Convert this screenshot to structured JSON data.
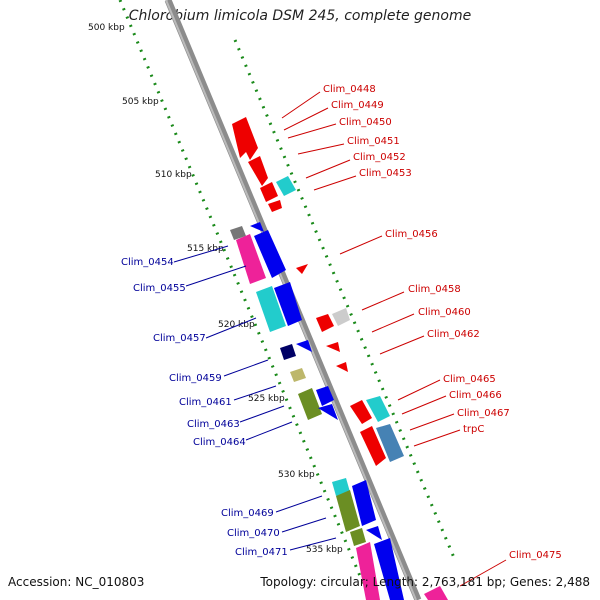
{
  "title": "Chlorobium limicola DSM 245, complete genome",
  "footer": {
    "accession": "Accession: NC_010803",
    "summary": "Topology: circular; Length: 2,763,181 bp; Genes: 2,488"
  },
  "scale_marks": [
    "500 kbp",
    "505 kbp",
    "510 kbp",
    "515 kbp",
    "520 kbp",
    "525 kbp",
    "530 kbp",
    "535 kbp"
  ],
  "genes_top": [
    "Clim_0448",
    "Clim_0449",
    "Clim_0450",
    "Clim_0451",
    "Clim_0452",
    "Clim_0453",
    "Clim_0456",
    "Clim_0458",
    "Clim_0460",
    "Clim_0462",
    "Clim_0465",
    "Clim_0466",
    "Clim_0467",
    "trpC",
    "Clim_0475"
  ],
  "genes_bottom": [
    "Clim_0454",
    "Clim_0455",
    "Clim_0457",
    "Clim_0459",
    "Clim_0461",
    "Clim_0463",
    "Clim_0464",
    "Clim_0469",
    "Clim_0470",
    "Clim_0471"
  ],
  "colors": {
    "backbone": "#8c8c8c",
    "scale_dots": "#1a8a1a",
    "forward_label": "#cc0000",
    "reverse_label": "#000099",
    "red": "#ee0000",
    "blue": "#0000ee",
    "cyan": "#22cccc",
    "magenta": "#ee2299",
    "olive": "#6b8e23",
    "gray": "#777777",
    "navy": "#000066",
    "khaki": "#bdb76b",
    "lightgray": "#cccccc",
    "steel": "#4682b4"
  }
}
